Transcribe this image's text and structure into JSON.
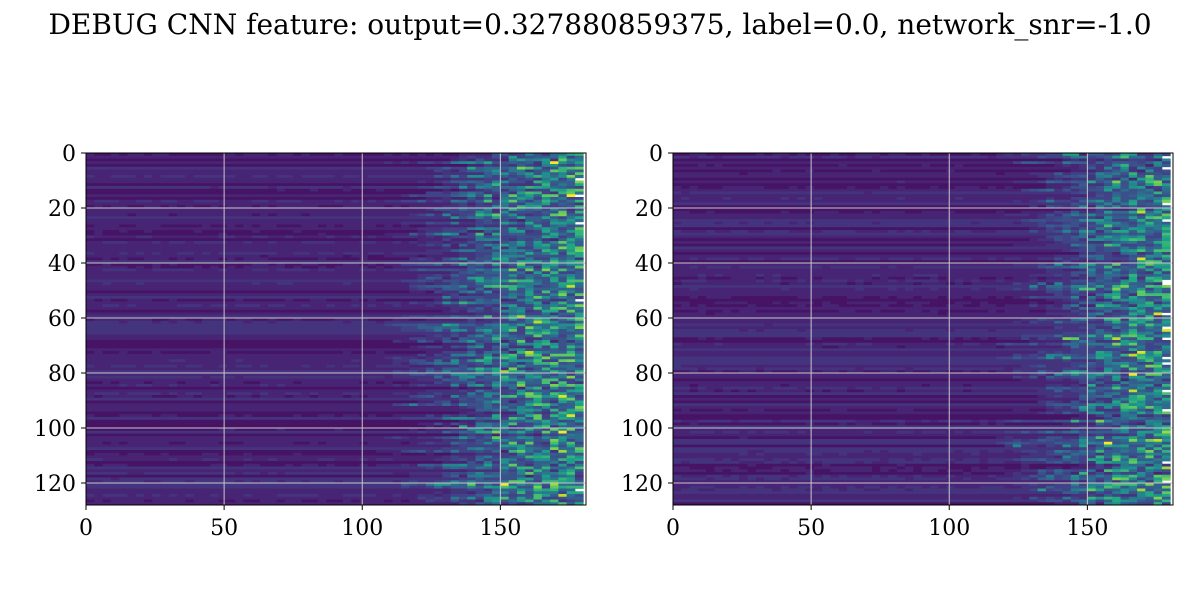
{
  "figure": {
    "title": "DEBUG CNN feature: output=0.327880859375, label=0.0, network_snr=-1.0"
  },
  "chart_data": [
    {
      "type": "heatmap",
      "colormap": "viridis",
      "grid": true,
      "xlim": [
        0,
        181
      ],
      "ylim": [
        128,
        0
      ],
      "x_ticks": [
        0,
        50,
        100,
        150
      ],
      "y_ticks": [
        0,
        20,
        40,
        60,
        80,
        100,
        120
      ],
      "rows": 128,
      "cols": 181,
      "activity_onset_col": 118,
      "seed": 7
    },
    {
      "type": "heatmap",
      "colormap": "viridis",
      "grid": true,
      "xlim": [
        0,
        181
      ],
      "ylim": [
        128,
        0
      ],
      "x_ticks": [
        0,
        50,
        100,
        150
      ],
      "y_ticks": [
        0,
        20,
        40,
        60,
        80,
        100,
        120
      ],
      "rows": 128,
      "cols": 181,
      "activity_onset_col": 128,
      "seed": 19
    }
  ]
}
